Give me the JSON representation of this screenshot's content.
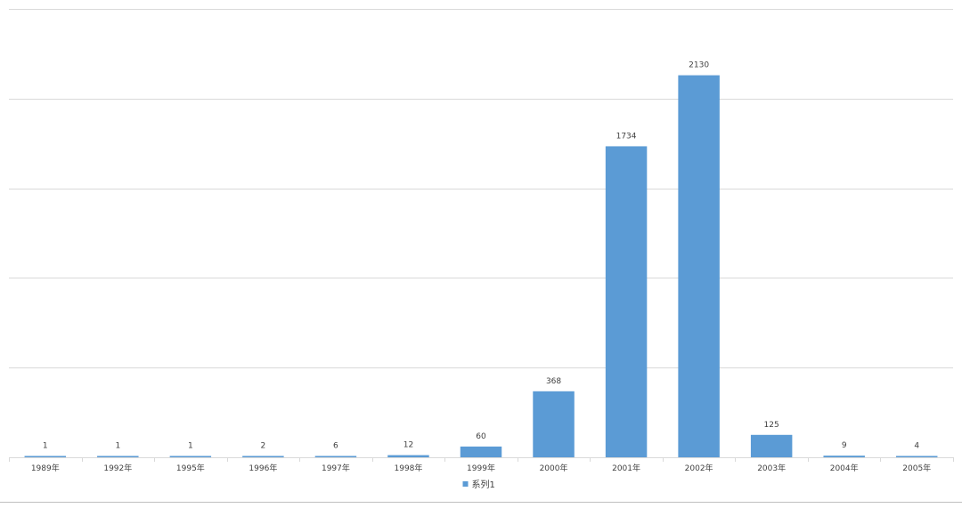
{
  "chart_data": {
    "type": "bar",
    "categories": [
      "1989年",
      "1992年",
      "1995年",
      "1996年",
      "1997年",
      "1998年",
      "1999年",
      "2000年",
      "2001年",
      "2002年",
      "2003年",
      "2004年",
      "2005年"
    ],
    "series": [
      {
        "name": "系列1",
        "values": [
          1,
          1,
          1,
          2,
          6,
          12,
          60,
          368,
          1734,
          2130,
          125,
          9,
          4
        ],
        "color": "#5b9bd5"
      }
    ],
    "data_labels": [
      "1",
      "1",
      "1",
      "2",
      "6",
      "12",
      "60",
      "368",
      "1734",
      "2130",
      "125",
      "9",
      "4"
    ],
    "ylim": [
      0,
      2500
    ],
    "gridlines": [
      0,
      500,
      1000,
      1500,
      2000,
      2500
    ],
    "y_tick_labels_visible": false,
    "grid": true,
    "legend_position": "bottom-center",
    "title": "",
    "xlabel": "",
    "ylabel": ""
  }
}
